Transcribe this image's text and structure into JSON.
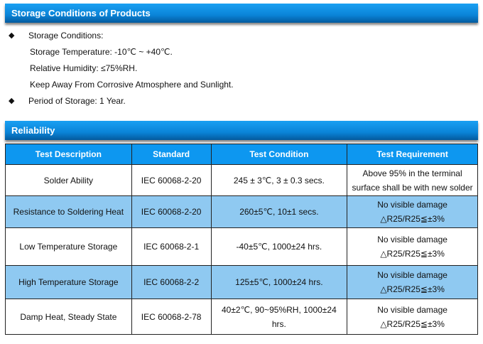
{
  "storage": {
    "title": "Storage Conditions of Products",
    "bullet1": "Storage Conditions:",
    "lines": [
      "Storage Temperature: -10℃ ~ +40℃.",
      "Relative Humidity: ≤75%RH.",
      "Keep Away From Corrosive Atmosphere and Sunlight."
    ],
    "bullet2": "Period of Storage: 1 Year."
  },
  "reliability": {
    "title": "Reliability",
    "headers": [
      "Test Description",
      "Standard",
      "Test Condition",
      "Test Requirement"
    ],
    "rows": [
      {
        "desc": "Solder Ability",
        "std": "IEC 60068-2-20",
        "cond": "245 ± 3℃, 3 ± 0.3 secs.",
        "req1": "Above 95% in the terminal",
        "req2": "surface shall be with new solder"
      },
      {
        "desc": "Resistance to Soldering Heat",
        "std": "IEC 60068-2-20",
        "cond": "260±5℃, 10±1 secs.",
        "req1": "No visible damage",
        "req2": "△R25/R25≦±3%"
      },
      {
        "desc": "Low Temperature Storage",
        "std": "IEC 60068-2-1",
        "cond": "-40±5℃, 1000±24 hrs.",
        "req1": "No visible damage",
        "req2": "△R25/R25≦±3%"
      },
      {
        "desc": "High Temperature Storage",
        "std": "IEC 60068-2-2",
        "cond": "125±5℃, 1000±24 hrs.",
        "req1": "No visible damage",
        "req2": "△R25/R25≦±3%"
      },
      {
        "desc": "Damp Heat, Steady State",
        "std": "IEC 60068-2-78",
        "cond": "40±2℃, 90~95%RH, 1000±24 hrs.",
        "req1": "No visible damage",
        "req2": "△R25/R25≦±3%"
      }
    ]
  }
}
